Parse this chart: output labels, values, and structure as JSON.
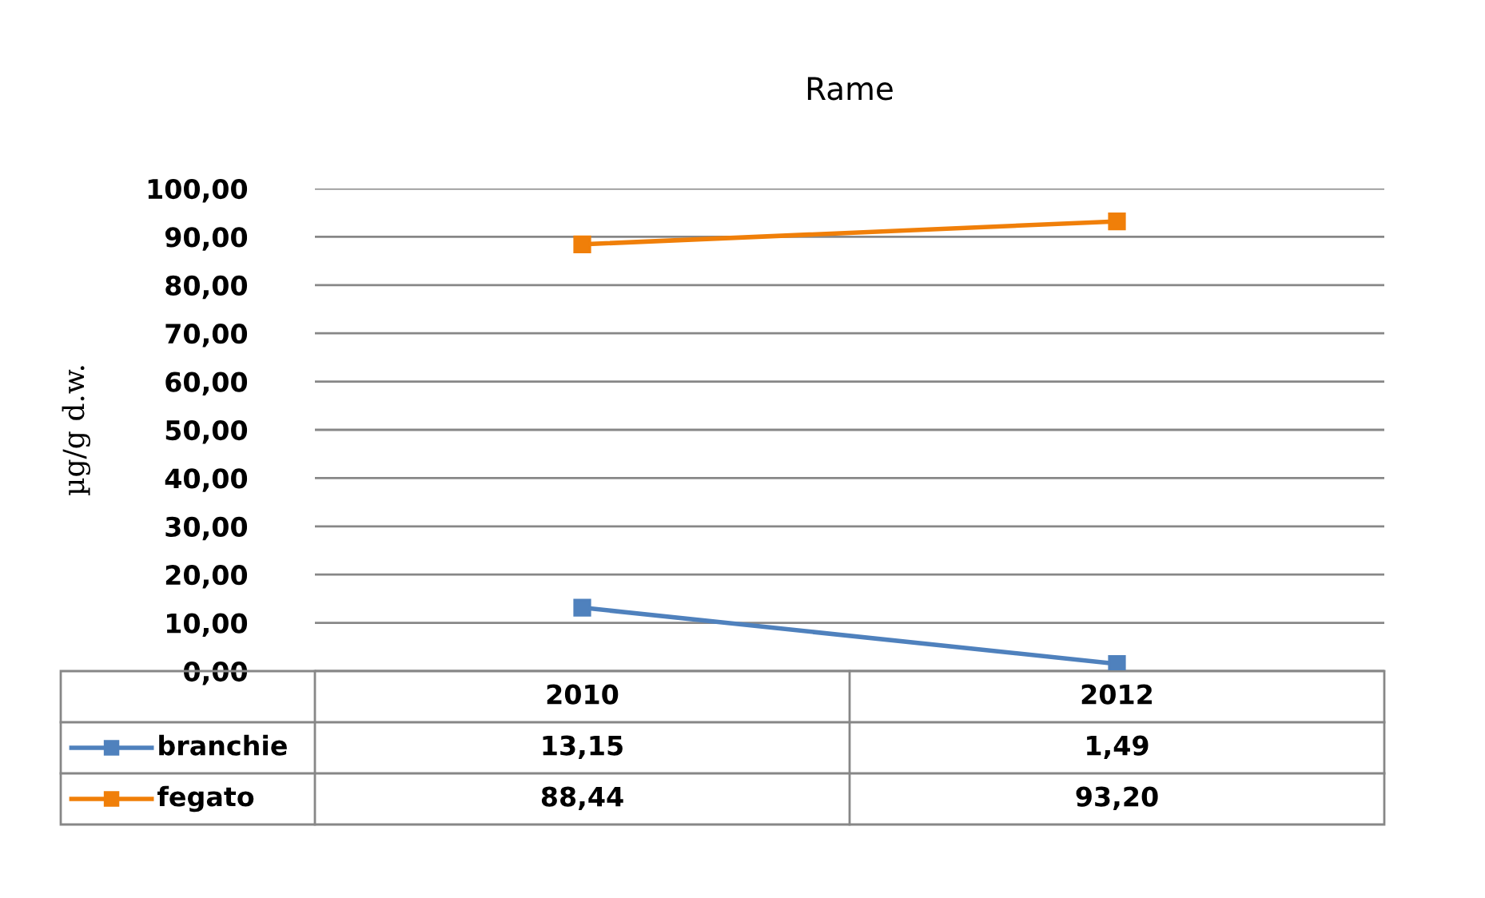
{
  "chart_data": {
    "type": "line",
    "title": "Rame",
    "ylabel": "µg/g d.w.",
    "categories": [
      "2010",
      "2012"
    ],
    "series": [
      {
        "name": "branchie",
        "color": "#4f81bd",
        "values": [
          13.15,
          1.49
        ],
        "value_labels": [
          "13,15",
          "1,49"
        ]
      },
      {
        "name": "fegato",
        "color": "#f07f09",
        "values": [
          88.44,
          93.2
        ],
        "value_labels": [
          "88,44",
          "93,20"
        ]
      }
    ],
    "ylim": [
      0,
      100
    ],
    "yticks": [
      {
        "value": 0,
        "label": "0,00"
      },
      {
        "value": 10,
        "label": "10,00"
      },
      {
        "value": 20,
        "label": "20,00"
      },
      {
        "value": 30,
        "label": "30,00"
      },
      {
        "value": 40,
        "label": "40,00"
      },
      {
        "value": 50,
        "label": "50,00"
      },
      {
        "value": 60,
        "label": "60,00"
      },
      {
        "value": 70,
        "label": "70,00"
      },
      {
        "value": 80,
        "label": "80,00"
      },
      {
        "value": 90,
        "label": "90,00"
      },
      {
        "value": 100,
        "label": "100,00"
      }
    ],
    "grid": "y",
    "legend": "bottom",
    "marker": "square",
    "line_style": "solid"
  }
}
